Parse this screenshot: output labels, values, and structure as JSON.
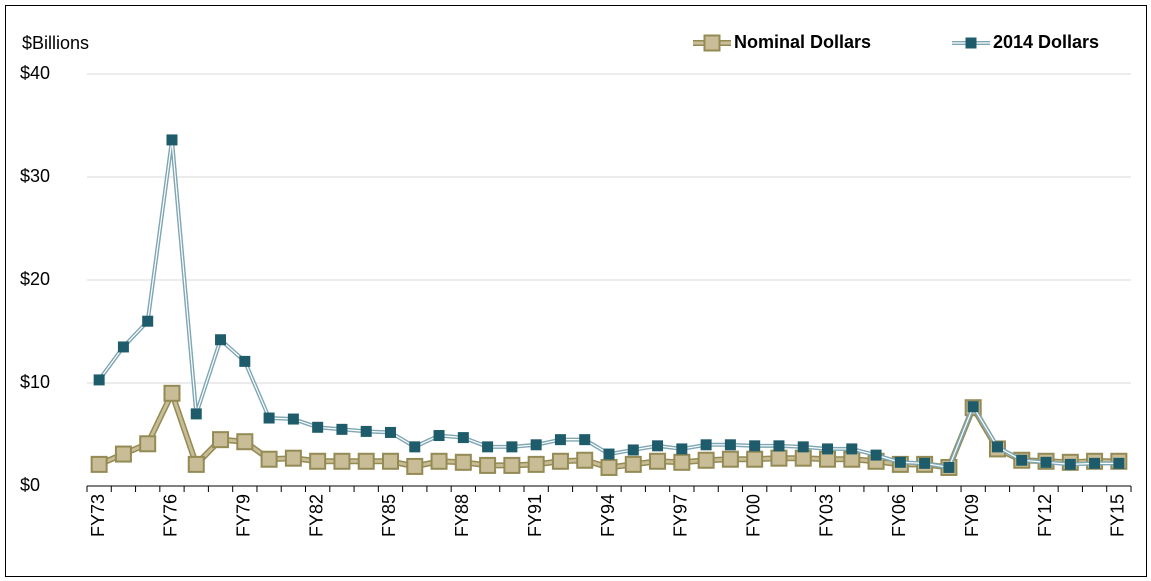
{
  "chart_data": {
    "type": "line",
    "y_label": "$Billions",
    "categories": [
      "FY73",
      null,
      null,
      "FY76",
      null,
      null,
      "FY79",
      null,
      null,
      "FY82",
      null,
      null,
      "FY85",
      null,
      null,
      "FY88",
      null,
      null,
      "FY91",
      null,
      null,
      "FY94",
      null,
      null,
      "FY97",
      null,
      null,
      "FY00",
      null,
      null,
      "FY03",
      null,
      null,
      "FY06",
      null,
      null,
      "FY09",
      null,
      null,
      "FY12",
      null,
      null,
      "FY15"
    ],
    "series": [
      {
        "name": "Nominal Dollars",
        "color": "#c8bd96",
        "edge": "#948a54",
        "values": [
          2.1,
          3.1,
          4.1,
          9.0,
          2.1,
          4.5,
          4.3,
          2.6,
          2.7,
          2.4,
          2.4,
          2.4,
          2.4,
          1.9,
          2.4,
          2.3,
          2.0,
          2.0,
          2.1,
          2.4,
          2.5,
          1.8,
          2.1,
          2.4,
          2.3,
          2.5,
          2.6,
          2.6,
          2.7,
          2.7,
          2.6,
          2.6,
          2.4,
          2.1,
          2.1,
          1.8,
          7.6,
          3.6,
          2.5,
          2.4,
          2.3,
          2.4,
          2.4
        ]
      },
      {
        "name": "2014 Dollars",
        "color": "#1f5c6b",
        "edge": "#7ea6b3",
        "values": [
          10.3,
          13.5,
          16.0,
          33.6,
          7.0,
          14.2,
          12.1,
          6.6,
          6.5,
          5.7,
          5.5,
          5.3,
          5.2,
          3.8,
          4.9,
          4.7,
          3.8,
          3.8,
          4.0,
          4.5,
          4.5,
          3.1,
          3.5,
          3.9,
          3.6,
          4.0,
          4.0,
          3.9,
          3.9,
          3.8,
          3.6,
          3.6,
          3.0,
          2.3,
          2.2,
          1.8,
          7.7,
          3.8,
          2.5,
          2.3,
          2.1,
          2.2,
          2.2
        ]
      }
    ],
    "ylim": [
      0,
      40
    ],
    "yticks": [
      {
        "value": 0,
        "label": "$0"
      },
      {
        "value": 10,
        "label": "$10"
      },
      {
        "value": 20,
        "label": "$20"
      },
      {
        "value": 30,
        "label": "$30"
      },
      {
        "value": 40,
        "label": "$40"
      }
    ],
    "grid": true,
    "legend": "top-right"
  }
}
